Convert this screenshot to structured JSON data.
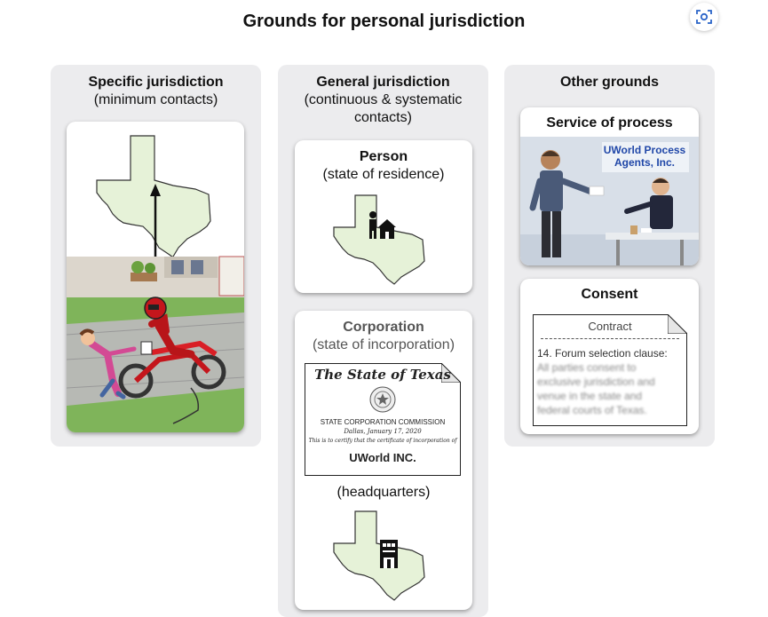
{
  "title": "Grounds for personal jurisdiction",
  "columns": {
    "specific": {
      "title": "Specific jurisdiction",
      "subtitle": "(minimum contacts)"
    },
    "general": {
      "title": "General jurisdiction",
      "subtitle": "(continuous & systematic contacts)",
      "person": {
        "title": "Person",
        "subtitle": "(state of residence)"
      },
      "corporation": {
        "title": "Corporation",
        "subtitle": "(state of incorporation)",
        "hq_label": "(headquarters)",
        "certificate": {
          "heading": "The State of Texas",
          "commission": "STATE CORPORATION COMMISSION",
          "date": "Dallas, January 17, 2020",
          "certify": "This is to certify that the certificate of incorporation of",
          "company": "UWorld INC."
        }
      }
    },
    "other": {
      "title": "Other grounds",
      "service": {
        "title": "Service of process",
        "sign": "UWorld Process Agents, Inc."
      },
      "consent": {
        "title": "Consent",
        "doc_title": "Contract",
        "clause": "14. Forum selection clause:",
        "clause_body": "All parties consent to exclusive jurisdiction and venue in the state and federal courts of Texas."
      }
    }
  }
}
